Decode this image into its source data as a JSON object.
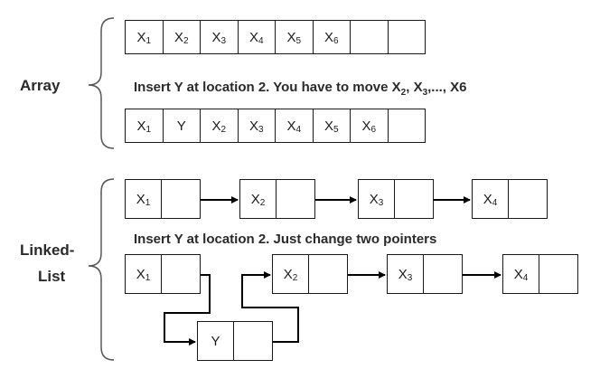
{
  "labels": {
    "array": "Array",
    "linked_list_line1": "Linked-",
    "linked_list_line2": "List"
  },
  "array_section": {
    "caption_prefix": "Insert Y at location 2. You have to move X",
    "caption_items": [
      {
        "base": "X",
        "sub": "2",
        "sep": ", "
      },
      {
        "base": "X",
        "sub": "3",
        "sep": ",..., "
      }
    ],
    "caption_tail": "X6",
    "before": [
      {
        "base": "X",
        "sub": "1"
      },
      {
        "base": "X",
        "sub": "2"
      },
      {
        "base": "X",
        "sub": "3"
      },
      {
        "base": "X",
        "sub": "4"
      },
      {
        "base": "X",
        "sub": "5"
      },
      {
        "base": "X",
        "sub": "6"
      },
      {
        "base": "",
        "sub": ""
      },
      {
        "base": "",
        "sub": ""
      }
    ],
    "after": [
      {
        "base": "X",
        "sub": "1"
      },
      {
        "base": "Y",
        "sub": ""
      },
      {
        "base": "X",
        "sub": "2"
      },
      {
        "base": "X",
        "sub": "3"
      },
      {
        "base": "X",
        "sub": "4"
      },
      {
        "base": "X",
        "sub": "5"
      },
      {
        "base": "X",
        "sub": "6"
      },
      {
        "base": "",
        "sub": ""
      }
    ]
  },
  "linked_list_section": {
    "caption": "Insert Y at location 2. Just change two pointers",
    "before": [
      {
        "base": "X",
        "sub": "1"
      },
      {
        "base": "X",
        "sub": "2"
      },
      {
        "base": "X",
        "sub": "3"
      },
      {
        "base": "X",
        "sub": "4"
      }
    ],
    "after": [
      {
        "base": "X",
        "sub": "1"
      },
      {
        "base": "X",
        "sub": "2"
      },
      {
        "base": "X",
        "sub": "3"
      },
      {
        "base": "X",
        "sub": "4"
      }
    ],
    "inserted": {
      "base": "Y",
      "sub": ""
    }
  }
}
